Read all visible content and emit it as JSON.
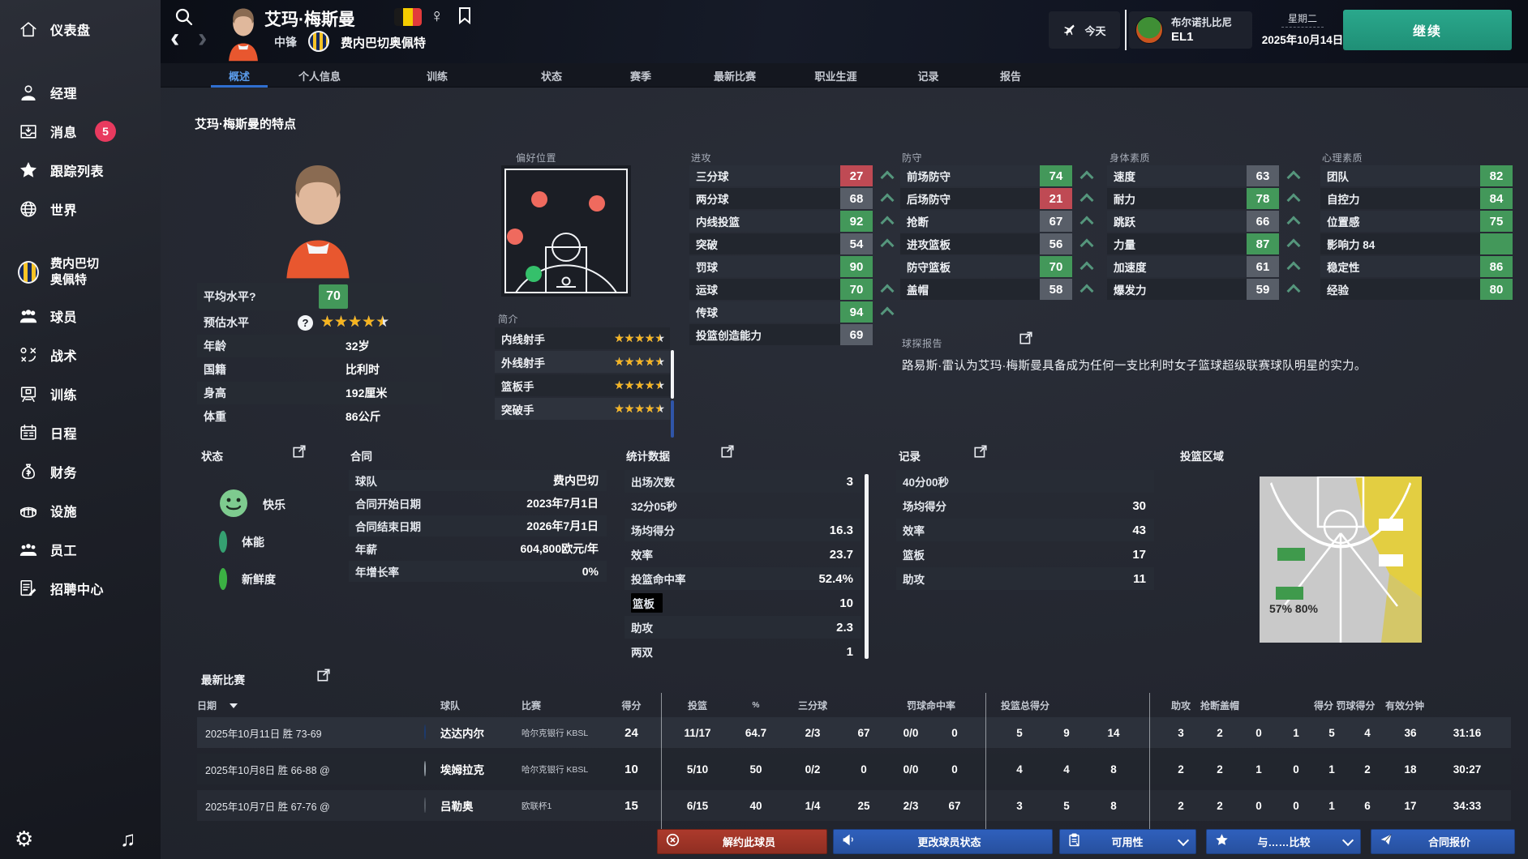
{
  "header": {
    "player_name": "艾玛·梅斯曼",
    "position": "中锋",
    "club": "费内巴切奥佩特",
    "gender_symbol": "♀",
    "icons": {
      "search": "search-icon",
      "back": "chevron-left-icon",
      "forward": "chevron-right-icon",
      "flag": "belgium-flag",
      "gender": "female-icon",
      "bookmark": "bookmark-icon",
      "travel": "airplane-icon"
    },
    "today_label": "今天",
    "next_opponent": {
      "name": "布尔诺扎比尼",
      "competition": "EL1",
      "logo": "brno-frog-crest"
    },
    "date": {
      "weekday": "星期二",
      "full": "2025年10月14日"
    },
    "continue_label": "继续"
  },
  "sidebar": {
    "items": [
      {
        "id": "dashboard",
        "label": "仪表盘",
        "icon": "home-icon"
      },
      {
        "id": "manager",
        "label": "经理",
        "icon": "manager-icon"
      },
      {
        "id": "messages",
        "label": "消息",
        "icon": "inbox-icon",
        "badge": "5"
      },
      {
        "id": "watchlist",
        "label": "跟踪列表",
        "icon": "star-icon"
      },
      {
        "id": "world",
        "label": "世界",
        "icon": "globe-icon"
      },
      {
        "id": "club",
        "lines": [
          "费内巴切",
          "奥佩特"
        ],
        "icon": "club-crest"
      },
      {
        "id": "players",
        "label": "球员",
        "icon": "players-icon"
      },
      {
        "id": "tactics",
        "label": "战术",
        "icon": "tactics-icon"
      },
      {
        "id": "training",
        "label": "训练",
        "icon": "training-icon"
      },
      {
        "id": "schedule",
        "label": "日程",
        "icon": "calendar-icon"
      },
      {
        "id": "finance",
        "label": "财务",
        "icon": "finance-icon"
      },
      {
        "id": "facilities",
        "label": "设施",
        "icon": "facilities-icon"
      },
      {
        "id": "staff",
        "label": "员工",
        "icon": "staff-icon"
      },
      {
        "id": "recruitment",
        "label": "招聘中心",
        "icon": "recruit-icon"
      }
    ],
    "footer_icons": [
      {
        "id": "settings",
        "icon": "gear-icon",
        "glyph": "⚙"
      },
      {
        "id": "music",
        "icon": "music-note-icon",
        "glyph": "♫"
      }
    ]
  },
  "tabs": [
    {
      "label": "概述",
      "active": true
    },
    {
      "label": "个人信息"
    },
    {
      "label": "训练"
    },
    {
      "label": "状态"
    },
    {
      "label": "赛季"
    },
    {
      "label": "最新比赛"
    },
    {
      "label": "职业生涯"
    },
    {
      "label": "记录"
    },
    {
      "label": "报告"
    }
  ],
  "page_title": "艾玛·梅斯曼的特点",
  "profile": {
    "rows": [
      {
        "label": "平均水平?",
        "type": "badge",
        "value": "70"
      },
      {
        "label": "预估水平",
        "type": "stars",
        "stars": 4.5,
        "help": true
      },
      {
        "label": "年龄",
        "value": "32岁"
      },
      {
        "label": "国籍",
        "value": "比利时"
      },
      {
        "label": "身高",
        "value": "192厘米"
      },
      {
        "label": "体重",
        "value": "86公斤"
      }
    ]
  },
  "preferred_position": {
    "label": "偏好位置"
  },
  "intro": {
    "label": "简介",
    "items": [
      {
        "label": "内线射手",
        "stars": 4.5
      },
      {
        "label": "外线射手",
        "stars": 4.5
      },
      {
        "label": "篮板手",
        "stars": 4.5
      },
      {
        "label": "突破手",
        "stars": 4.5
      }
    ]
  },
  "attributes": {
    "offense": {
      "label": "进攻",
      "rows": [
        {
          "label": "三分球",
          "value": "27",
          "tone": "bad",
          "up": true
        },
        {
          "label": "两分球",
          "value": "68",
          "tone": "mid",
          "up": true
        },
        {
          "label": "内线投篮",
          "value": "92",
          "tone": "good",
          "up": true
        },
        {
          "label": "突破",
          "value": "54",
          "tone": "mid",
          "up": true
        },
        {
          "label": "罚球",
          "value": "90",
          "tone": "good",
          "up": false
        },
        {
          "label": "运球",
          "value": "70",
          "tone": "good",
          "up": true
        },
        {
          "label": "传球",
          "value": "94",
          "tone": "good",
          "up": true
        },
        {
          "label": "投篮创造能力",
          "value": "69",
          "tone": "mid",
          "up": false
        }
      ]
    },
    "defense": {
      "label": "防守",
      "rows": [
        {
          "label": "前场防守",
          "value": "74",
          "tone": "good",
          "up": true
        },
        {
          "label": "后场防守",
          "value": "21",
          "tone": "bad",
          "up": true
        },
        {
          "label": "抢断",
          "value": "67",
          "tone": "mid",
          "up": true
        },
        {
          "label": "进攻篮板",
          "value": "56",
          "tone": "mid",
          "up": true
        },
        {
          "label": "防守篮板",
          "value": "70",
          "tone": "good",
          "up": true
        },
        {
          "label": "盖帽",
          "value": "58",
          "tone": "mid",
          "up": true
        }
      ]
    },
    "physical": {
      "label": "身体素质",
      "rows": [
        {
          "label": "速度",
          "value": "63",
          "tone": "mid",
          "up": true
        },
        {
          "label": "耐力",
          "value": "78",
          "tone": "good",
          "up": true
        },
        {
          "label": "跳跃",
          "value": "66",
          "tone": "mid",
          "up": true
        },
        {
          "label": "力量",
          "value": "87",
          "tone": "good",
          "up": true
        },
        {
          "label": "加速度",
          "value": "61",
          "tone": "mid",
          "up": true
        },
        {
          "label": "爆发力",
          "value": "59",
          "tone": "mid",
          "up": true
        }
      ]
    },
    "mental": {
      "label": "心理素质",
      "rows": [
        {
          "label": "团队",
          "value": "82",
          "tone": "good",
          "up": false
        },
        {
          "label": "自控力",
          "value": "84",
          "tone": "good",
          "up": false
        },
        {
          "label": "位置感",
          "value": "75",
          "tone": "good",
          "up": false
        },
        {
          "label": "影响力 84",
          "value": "",
          "tone": "good",
          "up": false
        },
        {
          "label": "稳定性",
          "value": "86",
          "tone": "good",
          "up": false
        },
        {
          "label": "经验",
          "value": "80",
          "tone": "good",
          "up": false
        }
      ]
    }
  },
  "scout_report": {
    "label": "球探报告",
    "text": "路易斯·雷认为艾玛·梅斯曼具备成为任何一支比利时女子篮球超级联赛球队明星的实力。"
  },
  "status": {
    "label": "状态",
    "items": [
      {
        "label": "快乐",
        "icon": "happy-face-icon"
      },
      {
        "label": "体能",
        "icon": "fitness-ring-icon"
      },
      {
        "label": "新鲜度",
        "icon": "freshness-ring-icon"
      }
    ]
  },
  "contract": {
    "label": "合同",
    "rows": [
      {
        "label": "球队",
        "value": "费内巴切"
      },
      {
        "label": "合同开始日期",
        "value": "2023年7月1日"
      },
      {
        "label": "合同结束日期",
        "value": "2026年7月1日"
      },
      {
        "label": "年薪",
        "value": "604,800欧元/年"
      },
      {
        "label": "年增长率",
        "value": "0%"
      }
    ]
  },
  "stats": {
    "label": "统计数据",
    "rows": [
      {
        "label": "出场次数",
        "value": "3"
      },
      {
        "label": "32分05秒",
        "value": ""
      },
      {
        "label": "场均得分",
        "value": "16.3"
      },
      {
        "label": "效率",
        "value": "23.7"
      },
      {
        "label": "投篮命中率",
        "value": "52.4%"
      },
      {
        "label": "篮板",
        "value": "10",
        "redacted": true
      },
      {
        "label": "助攻",
        "value": "2.3"
      },
      {
        "label": "两双",
        "value": "1"
      }
    ]
  },
  "records": {
    "label": "记录",
    "rows": [
      {
        "label": "40分00秒",
        "value": ""
      },
      {
        "label": "场均得分",
        "value": "30"
      },
      {
        "label": "效率",
        "value": "43"
      },
      {
        "label": "篮板",
        "value": "17"
      },
      {
        "label": "助攻",
        "value": "11"
      }
    ]
  },
  "shot_zones": {
    "label": "投篮区域",
    "annotation": "57% 80%"
  },
  "matches": {
    "label": "最新比赛",
    "headers": {
      "date": "日期",
      "team": "球队",
      "match": "比赛",
      "points": "得分",
      "fg": "投篮",
      "fg_pct": "%",
      "three": "三分球",
      "ft_pct": "罚球命中率",
      "totals": "投篮总得分",
      "assists": "助攻",
      "steals_blocks": "抢断盖帽",
      "points_ft": "得分 罚球得分",
      "minutes": "有效分钟"
    },
    "rows": [
      {
        "date": "2025年10月11日 胜 73-69",
        "team": "达达内尔",
        "logo": "dardanel-crest",
        "comp": "哈尔克银行 KBSL",
        "pts": "24",
        "shoot": [
          "11/17",
          "64.7",
          "2/3",
          "67",
          "0/0",
          "0"
        ],
        "reb": [
          "5",
          "9",
          "14"
        ],
        "tail": [
          "3",
          "2",
          "0",
          "1",
          "5",
          "4",
          "36",
          "31:16"
        ]
      },
      {
        "date": "2025年10月8日 胜 66-88 @",
        "team": "埃姆拉克",
        "logo": "emlak-crest",
        "comp": "哈尔克银行 KBSL",
        "pts": "10",
        "shoot": [
          "5/10",
          "50",
          "0/2",
          "0",
          "0/0",
          "0"
        ],
        "reb": [
          "4",
          "4",
          "8"
        ],
        "tail": [
          "2",
          "2",
          "1",
          "0",
          "1",
          "2",
          "18",
          "30:27"
        ]
      },
      {
        "date": "2025年10月7日 胜 67-76 @",
        "team": "吕勒奥",
        "logo": "lulea-crest",
        "comp": "欧联杯1",
        "pts": "15",
        "shoot": [
          "6/15",
          "40",
          "1/4",
          "25",
          "2/3",
          "67"
        ],
        "reb": [
          "3",
          "5",
          "8"
        ],
        "tail": [
          "2",
          "2",
          "0",
          "0",
          "1",
          "6",
          "17",
          "34:33"
        ]
      }
    ]
  },
  "actions": [
    {
      "id": "release-player",
      "label": "解约此球员",
      "style": "danger",
      "icon": "circle-x-icon"
    },
    {
      "id": "change-status",
      "label": "更改球员状态",
      "style": "primary",
      "icon": "megaphone-icon"
    },
    {
      "id": "availability",
      "label": "可用性",
      "style": "primary",
      "icon": "clipboard-icon",
      "chevron": true
    },
    {
      "id": "compare-with",
      "label": "与……比较",
      "style": "primary",
      "icon": "star-icon",
      "chevron": true
    },
    {
      "id": "contract-offer",
      "label": "合同报价",
      "style": "primary",
      "icon": "send-icon"
    }
  ]
}
